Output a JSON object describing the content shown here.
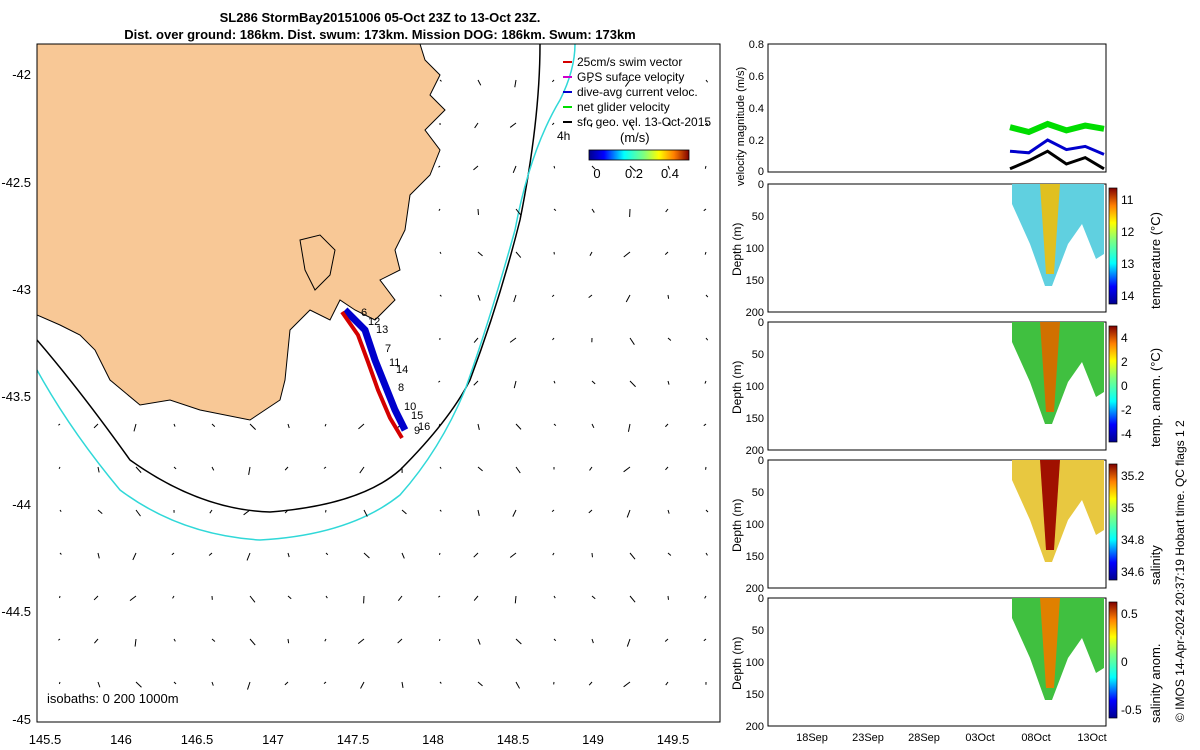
{
  "titles": {
    "line1": "SL286 StormBay20151006 05-Oct 23Z to 13-Oct 23Z.",
    "line2": "Dist. over ground: 186km. Dist. swum: 173km. Mission DOG: 186km. Swum: 173km"
  },
  "map": {
    "lat_ticks": [
      "-42",
      "-42.5",
      "-43",
      "-43.5",
      "-44",
      "-44.5",
      "-45"
    ],
    "lon_ticks": [
      "145.5",
      "146",
      "146.5",
      "147",
      "147.5",
      "148",
      "148.5",
      "149",
      "149.5"
    ],
    "isobaths_label": "isobaths: 0   200  1000m",
    "legend": [
      {
        "label": "25cm/s swim vector",
        "color": "#d40000"
      },
      {
        "label": "GPS suface velocity",
        "color": "#cc00cc"
      },
      {
        "label": "dive-avg current veloc.",
        "color": "#0000cc"
      },
      {
        "label": "net glider velocity",
        "color": "#00dd00"
      },
      {
        "label": "sfc geo. vel. 13-Oct-2015",
        "color": "#000000"
      }
    ],
    "time_step_label": "4h",
    "colorbar_title": "(m/s)",
    "colorbar_ticks": [
      "0",
      "0.2",
      "0.4"
    ],
    "day_labels": [
      "6",
      "12",
      "13",
      "7",
      "11",
      "14",
      "8",
      "10",
      "15",
      "16",
      "9"
    ],
    "land_color": "#f8c896"
  },
  "chart_data": [
    {
      "type": "line",
      "title": "",
      "ylabel": "velocity magnitude (m/s)",
      "yticks": [
        "0",
        "0.2",
        "0.4",
        "0.6",
        "0.8"
      ],
      "ylim": [
        0,
        0.8
      ],
      "series": [
        {
          "name": "net glider velocity",
          "color": "#00dd00",
          "x": [
            0,
            0.2,
            0.4,
            0.6,
            0.8,
            1.0
          ],
          "values": [
            0.28,
            0.25,
            0.3,
            0.26,
            0.29,
            0.27
          ]
        },
        {
          "name": "dive-avg current veloc.",
          "color": "#0000cc",
          "x": [
            0,
            0.2,
            0.4,
            0.6,
            0.8,
            1.0
          ],
          "values": [
            0.13,
            0.12,
            0.2,
            0.14,
            0.16,
            0.11
          ]
        },
        {
          "name": "sfc geo. vel.",
          "color": "#000000",
          "x": [
            0,
            0.2,
            0.4,
            0.6,
            0.8,
            1.0
          ],
          "values": [
            0.02,
            0.07,
            0.13,
            0.05,
            0.09,
            0.02
          ]
        }
      ]
    },
    {
      "type": "heatmap",
      "ylabel": "Depth (m)",
      "yticks": [
        "0",
        "50",
        "100",
        "150",
        "200"
      ],
      "colorbar_label": "temperature (°C)",
      "colorbar_ticks": [
        "11",
        "12",
        "13",
        "14"
      ],
      "vmin": 10.3,
      "vmax": 14.9
    },
    {
      "type": "heatmap",
      "ylabel": "Depth (m)",
      "yticks": [
        "0",
        "50",
        "100",
        "150",
        "200"
      ],
      "colorbar_label": "temp. anom. (°C)",
      "colorbar_ticks": [
        "4",
        "2",
        "0",
        "-2",
        "-4"
      ],
      "vmin": -4,
      "vmax": 4
    },
    {
      "type": "heatmap",
      "ylabel": "Depth (m)",
      "yticks": [
        "0",
        "50",
        "100",
        "150",
        "200"
      ],
      "colorbar_label": "salinity",
      "colorbar_ticks": [
        "35.2",
        "35",
        "34.8",
        "34.6"
      ],
      "vmin": 34.5,
      "vmax": 35.3
    },
    {
      "type": "heatmap",
      "ylabel": "Depth (m)",
      "yticks": [
        "0",
        "50",
        "100",
        "150",
        "200"
      ],
      "colorbar_label": "salinity anom.",
      "colorbar_ticks": [
        "0.5",
        "0",
        "-0.5"
      ],
      "vmin": -0.5,
      "vmax": 0.5
    }
  ],
  "time_axis": {
    "ticks": [
      "18Sep",
      "23Sep",
      "28Sep",
      "03Oct",
      "08Oct",
      "13Oct"
    ]
  },
  "footer": "© IMOS 14-Apr-2024 20:37:19 Hobart time. QC flags 1  2"
}
